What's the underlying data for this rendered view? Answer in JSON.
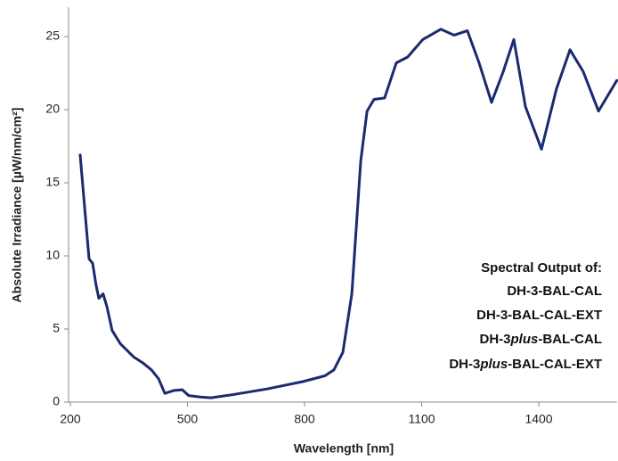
{
  "chart_data": {
    "type": "line",
    "xlabel": "Wavelength [nm]",
    "ylabel": "Absolute Irradiance [µW/nm/cm²]",
    "annotation": [
      "Spectral Output of:",
      "DH-3-BAL-CAL",
      "DH-3-BAL-CAL-EXT",
      [
        "DH-3",
        "plus",
        "-BAL-CAL"
      ],
      [
        "DH-3",
        "plus",
        "-BAL-CAL-EXT"
      ]
    ],
    "color": "#1c2a6e",
    "x": [
      225,
      248,
      257,
      266,
      273,
      284,
      294,
      307,
      328,
      362,
      385,
      408,
      426,
      442,
      465,
      487,
      503,
      533,
      560,
      613,
      704,
      795,
      852,
      875,
      898,
      921,
      944,
      960,
      978,
      1005,
      1035,
      1064,
      1103,
      1149,
      1183,
      1217,
      1247,
      1279,
      1309,
      1336,
      1366,
      1407,
      1445,
      1480,
      1514,
      1553,
      1600
    ],
    "values": [
      16.9,
      9.8,
      9.5,
      8.0,
      7.1,
      7.4,
      6.5,
      4.9,
      4.0,
      3.1,
      2.7,
      2.2,
      1.6,
      0.6,
      0.8,
      0.85,
      0.45,
      0.35,
      0.3,
      0.5,
      0.9,
      1.4,
      1.8,
      2.2,
      3.4,
      7.4,
      16.5,
      19.9,
      20.7,
      20.8,
      23.2,
      23.6,
      24.8,
      25.5,
      25.1,
      25.4,
      23.2,
      20.5,
      22.6,
      24.8,
      20.2,
      17.3,
      21.4,
      24.1,
      22.6,
      19.9,
      22.0
    ],
    "xlim": [
      200,
      1600
    ],
    "xticks": [
      200,
      500,
      800,
      1100,
      1400
    ],
    "ylim": [
      0,
      27
    ],
    "yticks": [
      0,
      5,
      10,
      15,
      20,
      25
    ]
  }
}
